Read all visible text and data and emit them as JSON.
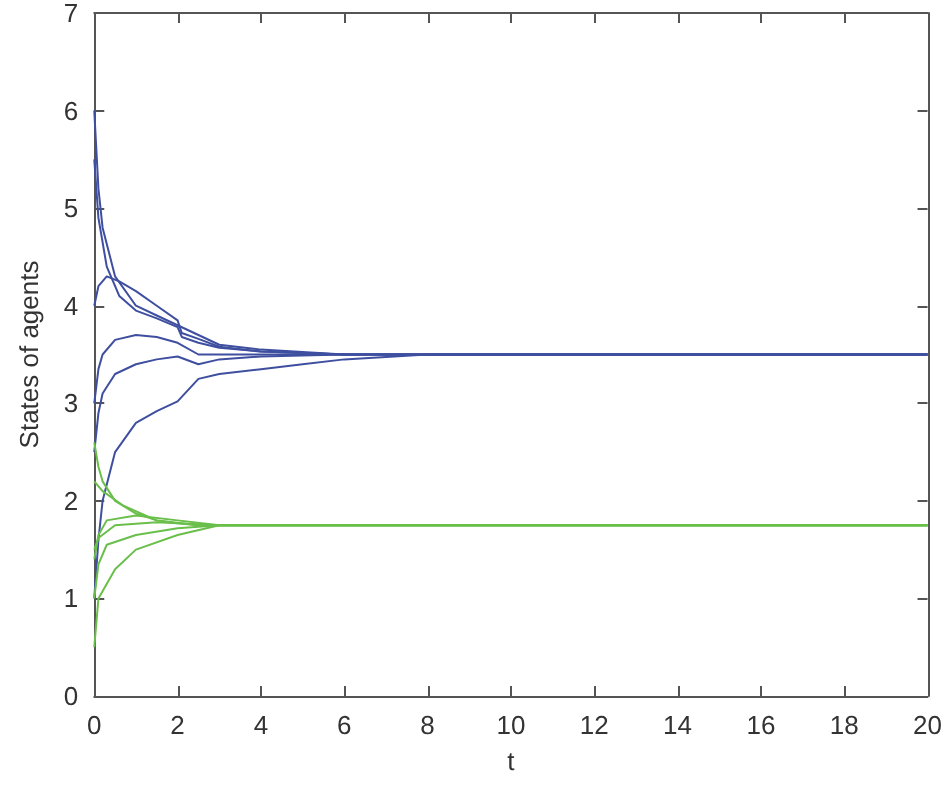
{
  "chart_data": {
    "type": "line",
    "xlabel": "t",
    "ylabel": "States of agents",
    "xlim": [
      0,
      20
    ],
    "ylim": [
      0,
      7
    ],
    "xticks": [
      0,
      2,
      4,
      6,
      8,
      10,
      12,
      14,
      16,
      18,
      20
    ],
    "yticks": [
      0,
      1,
      2,
      3,
      4,
      5,
      6,
      7
    ],
    "grid": false,
    "marker": "none",
    "line_style": "solid",
    "series": [
      {
        "color": "#3f4fa0",
        "x": [
          0,
          0.1,
          0.2,
          0.5,
          1,
          1.5,
          2,
          2.5,
          3,
          4,
          6,
          8,
          20
        ],
        "values": [
          6.0,
          5.2,
          4.8,
          4.3,
          4.0,
          3.9,
          3.8,
          3.7,
          3.6,
          3.55,
          3.5,
          3.5,
          3.5
        ]
      },
      {
        "color": "#3f4fa0",
        "x": [
          0,
          0.1,
          0.3,
          0.6,
          1,
          1.5,
          2,
          2.1,
          2.5,
          3,
          4,
          6,
          8,
          20
        ],
        "values": [
          5.5,
          4.9,
          4.4,
          4.1,
          3.95,
          3.87,
          3.78,
          3.68,
          3.62,
          3.57,
          3.53,
          3.5,
          3.5,
          3.5
        ]
      },
      {
        "color": "#3f4fa0",
        "x": [
          0,
          0.1,
          0.3,
          0.6,
          1,
          1.5,
          2,
          2.1,
          2.5,
          3,
          4,
          6,
          8,
          20
        ],
        "values": [
          4.0,
          4.2,
          4.3,
          4.25,
          4.15,
          4.0,
          3.85,
          3.72,
          3.66,
          3.58,
          3.53,
          3.5,
          3.5,
          3.5
        ]
      },
      {
        "color": "#3f4fa0",
        "x": [
          0,
          0.1,
          0.2,
          0.5,
          1,
          1.5,
          2,
          2.5,
          3,
          4,
          6,
          8,
          20
        ],
        "values": [
          3.0,
          3.35,
          3.5,
          3.65,
          3.7,
          3.68,
          3.62,
          3.5,
          3.5,
          3.5,
          3.5,
          3.5,
          3.5
        ]
      },
      {
        "color": "#3f4fa0",
        "x": [
          0,
          0.1,
          0.2,
          0.5,
          1,
          1.5,
          2,
          2.5,
          3,
          4,
          6,
          8,
          20
        ],
        "values": [
          2.5,
          2.9,
          3.1,
          3.3,
          3.4,
          3.45,
          3.48,
          3.4,
          3.45,
          3.48,
          3.5,
          3.5,
          3.5
        ]
      },
      {
        "color": "#3f4fa0",
        "x": [
          0,
          0.1,
          0.2,
          0.5,
          1,
          1.5,
          2,
          2.5,
          3,
          4,
          5,
          6,
          8,
          20
        ],
        "values": [
          1.0,
          1.6,
          2.0,
          2.5,
          2.8,
          2.92,
          3.02,
          3.25,
          3.3,
          3.35,
          3.4,
          3.45,
          3.5,
          3.5
        ]
      },
      {
        "color": "#6abf4b",
        "x": [
          0,
          0.1,
          0.2,
          0.5,
          1,
          1.5,
          2,
          2.5,
          3,
          4,
          20
        ],
        "values": [
          2.6,
          2.35,
          2.2,
          2.0,
          1.87,
          1.8,
          1.77,
          1.75,
          1.75,
          1.75,
          1.75
        ]
      },
      {
        "color": "#6abf4b",
        "x": [
          0,
          0.2,
          0.7,
          1.5,
          2.5,
          3,
          4,
          20
        ],
        "values": [
          2.2,
          2.1,
          1.95,
          1.8,
          1.75,
          1.75,
          1.75,
          1.75
        ]
      },
      {
        "color": "#6abf4b",
        "x": [
          0,
          0.1,
          0.3,
          1,
          2,
          3,
          4,
          20
        ],
        "values": [
          1.4,
          1.65,
          1.8,
          1.85,
          1.8,
          1.75,
          1.75,
          1.75
        ]
      },
      {
        "color": "#6abf4b",
        "x": [
          0,
          0.1,
          0.5,
          1.5,
          3,
          4,
          20
        ],
        "values": [
          1.5,
          1.62,
          1.75,
          1.78,
          1.75,
          1.75,
          1.75
        ]
      },
      {
        "color": "#6abf4b",
        "x": [
          0,
          0.1,
          0.3,
          1,
          2,
          3,
          4,
          20
        ],
        "values": [
          1.0,
          1.35,
          1.55,
          1.65,
          1.72,
          1.75,
          1.75,
          1.75
        ]
      },
      {
        "color": "#6abf4b",
        "x": [
          0,
          0.1,
          0.5,
          1,
          2,
          3,
          4,
          20
        ],
        "values": [
          0.5,
          1.0,
          1.3,
          1.5,
          1.65,
          1.75,
          1.75,
          1.75
        ]
      }
    ]
  }
}
